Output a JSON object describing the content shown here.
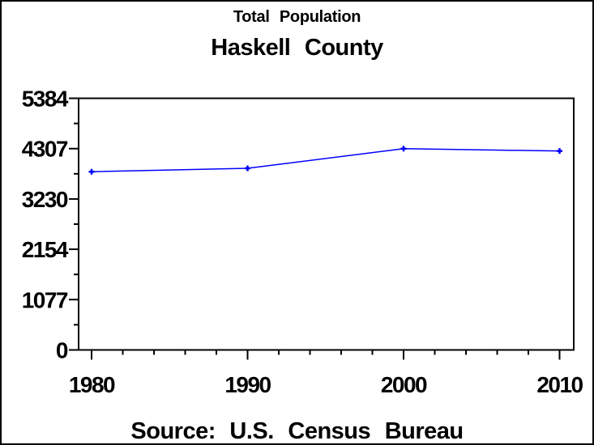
{
  "window": {
    "background": "#FFFFFF",
    "border_color": "#000000"
  },
  "titles": {
    "line1": "Total Population",
    "line2": "Haskell County"
  },
  "footer": {
    "source": "Source: U.S. Census Bureau"
  },
  "chart_data": {
    "type": "line",
    "title": "Haskell County",
    "subtitle": "Total Population",
    "source": "Source: U.S. Census Bureau",
    "x": [
      1980,
      1990,
      2000,
      2010
    ],
    "xticks": [
      "1980",
      "1990",
      "2000",
      "2010"
    ],
    "x_minor_tick_step_years": 2,
    "series": [
      {
        "name": "Total Population",
        "values": [
          3814,
          3886,
          4307,
          4256
        ]
      }
    ],
    "ylim": [
      0,
      5384
    ],
    "yticks": [
      "0",
      "1077",
      "2154",
      "3230",
      "4307",
      "5384"
    ],
    "y_minor_ticks": "midpoints",
    "xlabel": "",
    "ylabel": "",
    "grid": false,
    "frame": true,
    "legend": "none",
    "line_color": "#0000FF",
    "marker": "plus",
    "axis_color": "#000000",
    "text_color": "#000000"
  }
}
